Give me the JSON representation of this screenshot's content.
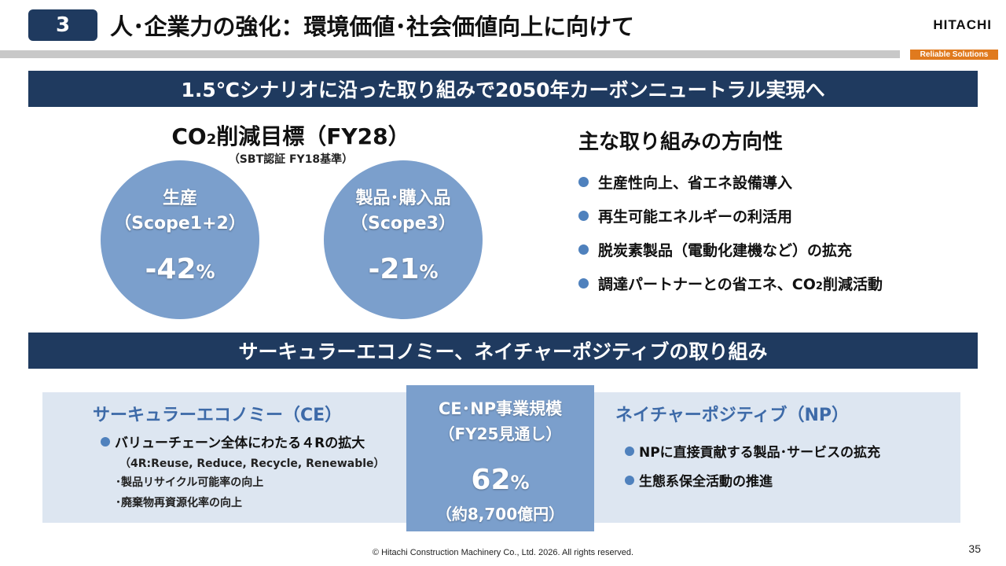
{
  "header": {
    "section_number": "3",
    "title": "人･企業力の強化：環境価値･社会価値向上に向けて",
    "logo_text": "HITACHI",
    "tagline": "Reliable Solutions"
  },
  "banner_top": "1.5℃シナリオに沿った取り組みで2050年カーボンニュートラル実現へ",
  "co2_target": {
    "title_prefix": "CO",
    "title_sub": "2",
    "title_suffix": "削減目標（FY28）",
    "subtitle": "（SBT認証 FY18基準）",
    "circles": [
      {
        "line1": "生産",
        "line2": "（Scope1+2）",
        "value": "-42",
        "unit": "%"
      },
      {
        "line1": "製品･購入品",
        "line2": "（Scope3）",
        "value": "-21",
        "unit": "%"
      }
    ]
  },
  "directions": {
    "title": "主な取り組みの方向性",
    "items": [
      {
        "text": "生産性向上、省エネ設備導入"
      },
      {
        "text": "再生可能エネルギーの利活用"
      },
      {
        "text": "脱炭素製品（電動化建機など）の拡充"
      },
      {
        "prefix": "調達パートナーとの省エネ、CO",
        "sub": "2",
        "suffix": "削減活動"
      }
    ]
  },
  "banner_bottom": "サーキュラーエコノミー、ネイチャーポジティブの取り組み",
  "ce": {
    "title": "サーキュラーエコノミー（CE）",
    "main_item": "バリューチェーン全体にわたる４Rの拡大",
    "note": "（4R:Reuse, Reduce, Recycle, Renewable）",
    "sub_items": [
      "･製品リサイクル可能率の向上",
      "･廃棄物再資源化率の向上"
    ]
  },
  "center": {
    "title": "CE･NP事業規模",
    "subtitle": "（FY25見通し）",
    "value": "62",
    "unit": "%",
    "amount": "（約8,700億円）"
  },
  "np": {
    "title": "ネイチャーポジティブ（NP）",
    "items": [
      "NPに直接貢献する製品･サービスの拡充",
      "生態系保全活動の推進"
    ]
  },
  "footer": {
    "copyright": "© Hitachi Construction Machinery Co., Ltd. 2026. All rights reserved.",
    "page_number": "35"
  },
  "colors": {
    "navy": "#1f3a5f",
    "circle_blue": "#7b9fcc",
    "accent_blue": "#3d6aa8",
    "panel_bg": "#dde6f1",
    "tagline_orange": "#e07a1e"
  }
}
